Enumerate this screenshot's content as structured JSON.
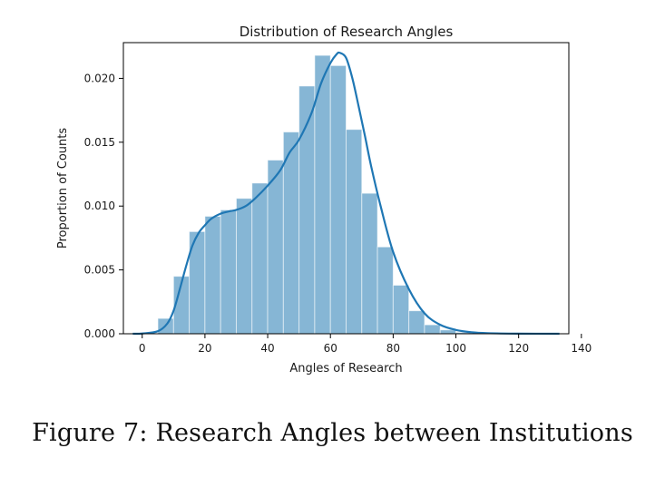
{
  "chart_data": {
    "type": "area",
    "title": "Distribution of Research Angles",
    "xlabel": "Angles of Research",
    "ylabel": "Proportion of Counts",
    "xlim": [
      -6,
      136
    ],
    "ylim": [
      0,
      0.0228
    ],
    "xticks": [
      0,
      20,
      40,
      60,
      80,
      100,
      120,
      140
    ],
    "xtick_labels": [
      "0",
      "20",
      "40",
      "60",
      "80",
      "100",
      "120",
      "140"
    ],
    "yticks": [
      0.0,
      0.005,
      0.01,
      0.015,
      0.02
    ],
    "ytick_labels": [
      "0.000",
      "0.005",
      "0.010",
      "0.015",
      "0.020"
    ],
    "grid": false,
    "histogram": {
      "bin_edges": [
        5,
        10,
        15,
        20,
        25,
        30,
        35,
        40,
        45,
        50,
        55,
        60,
        65,
        70,
        75,
        80,
        85,
        90,
        95,
        100,
        105,
        110
      ],
      "values": [
        0.0012,
        0.0045,
        0.008,
        0.0092,
        0.0097,
        0.0106,
        0.0118,
        0.0136,
        0.0158,
        0.0194,
        0.0218,
        0.021,
        0.016,
        0.011,
        0.0068,
        0.0038,
        0.0018,
        0.0007,
        0.0003,
        0.0001,
        0.0
      ]
    },
    "kde": {
      "x": [
        -3,
        0,
        5,
        8,
        10,
        12,
        14,
        16,
        18,
        20,
        22,
        25,
        28,
        30,
        33,
        36,
        40,
        44,
        47,
        50,
        54,
        57,
        60,
        62,
        63,
        65,
        67,
        69,
        71,
        73,
        76,
        80,
        85,
        90,
        95,
        100,
        105,
        110,
        120,
        133
      ],
      "y": [
        0.0,
        2e-05,
        0.0002,
        0.0008,
        0.0018,
        0.0035,
        0.0053,
        0.0069,
        0.0079,
        0.0085,
        0.009,
        0.0094,
        0.0096,
        0.0097,
        0.01,
        0.0106,
        0.0116,
        0.0128,
        0.0142,
        0.0152,
        0.0173,
        0.0196,
        0.0212,
        0.0219,
        0.022,
        0.0216,
        0.02,
        0.0178,
        0.0155,
        0.0131,
        0.01,
        0.0064,
        0.0035,
        0.0016,
        0.0007,
        0.0003,
        0.00012,
        5e-05,
        1e-05,
        0.0
      ]
    },
    "colors": {
      "bar_fill": "#86b6d5",
      "kde_line": "#1f77b4",
      "axis": "#000000"
    }
  },
  "caption": "Figure 7: Research Angles between Institutions"
}
